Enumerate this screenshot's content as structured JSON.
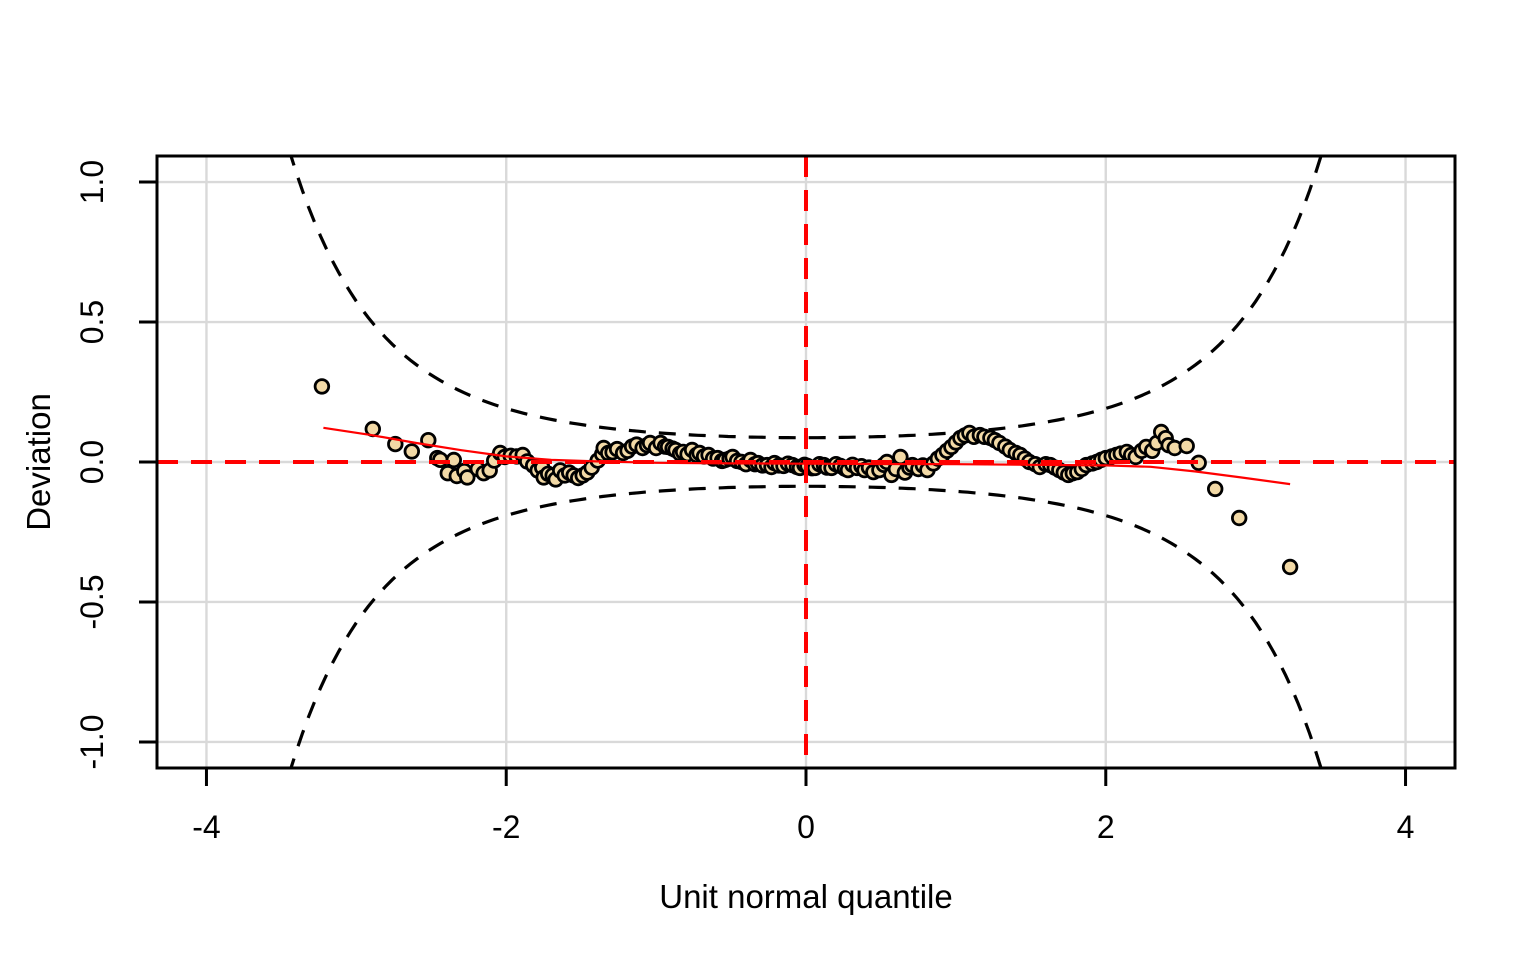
{
  "figure": {
    "background": "#ffffff"
  },
  "chart_data": {
    "type": "scatter",
    "title": "",
    "xlabel": "Unit normal quantile",
    "ylabel": "Deviation",
    "xlim": [
      -4.33,
      4.33
    ],
    "ylim": [
      -1.093,
      1.093
    ],
    "grid": true,
    "x_ticks": {
      "values": [
        -4,
        -2,
        0,
        2,
        4
      ],
      "labels": [
        "-4",
        "-2",
        "0",
        "2",
        "4"
      ]
    },
    "y_ticks": {
      "values": [
        -1.0,
        -0.5,
        0.0,
        0.5,
        1.0
      ],
      "labels": [
        "-1.0",
        "-0.5",
        "0.0",
        "0.5",
        "1.0"
      ]
    },
    "reference_lines": {
      "horizontal_y": 0,
      "vertical_x": 0
    },
    "confidence_envelope": {
      "level": 0.95,
      "z_multiplier": 1.96,
      "n": 800
    },
    "fit_curve": [
      [
        -3.22,
        0.122
      ],
      [
        -2.9,
        0.096
      ],
      [
        -2.6,
        0.068
      ],
      [
        -2.3,
        0.042
      ],
      [
        -2.0,
        0.02
      ],
      [
        -1.7,
        0.008
      ],
      [
        -1.4,
        0.002
      ],
      [
        -1.0,
        -0.003
      ],
      [
        -0.5,
        -0.005
      ],
      [
        0,
        -0.006
      ],
      [
        0.5,
        -0.007
      ],
      [
        1.0,
        -0.008
      ],
      [
        1.5,
        -0.01
      ],
      [
        2.0,
        -0.012
      ],
      [
        2.3,
        -0.017
      ],
      [
        2.6,
        -0.034
      ],
      [
        2.9,
        -0.055
      ],
      [
        3.23,
        -0.079
      ]
    ],
    "points": [
      [
        -3.23,
        0.27
      ],
      [
        -2.89,
        0.118
      ],
      [
        -2.74,
        0.064
      ],
      [
        -2.63,
        0.038
      ],
      [
        -2.52,
        0.078
      ],
      [
        -2.46,
        0.014
      ],
      [
        -2.44,
        0.008
      ],
      [
        -2.39,
        -0.04
      ],
      [
        -2.35,
        0.007
      ],
      [
        -2.33,
        -0.05
      ],
      [
        -2.28,
        -0.032
      ],
      [
        -2.26,
        -0.055
      ],
      [
        -2.19,
        -0.025
      ],
      [
        -2.15,
        -0.04
      ],
      [
        -2.11,
        -0.03
      ],
      [
        -2.08,
        0.005
      ],
      [
        -2.04,
        0.032
      ],
      [
        -2.01,
        0.018
      ],
      [
        -1.97,
        0.022
      ],
      [
        -1.93,
        0.02
      ],
      [
        -1.89,
        0.025
      ],
      [
        -1.86,
        0.002
      ],
      [
        -1.82,
        -0.012
      ],
      [
        -1.79,
        -0.03
      ],
      [
        -1.76,
        -0.02
      ],
      [
        -1.75,
        -0.055
      ],
      [
        -1.72,
        -0.042
      ],
      [
        -1.69,
        -0.048
      ],
      [
        -1.67,
        -0.062
      ],
      [
        -1.64,
        -0.03
      ],
      [
        -1.61,
        -0.048
      ],
      [
        -1.58,
        -0.038
      ],
      [
        -1.55,
        -0.048
      ],
      [
        -1.52,
        -0.057
      ],
      [
        -1.49,
        -0.048
      ],
      [
        -1.46,
        -0.038
      ],
      [
        -1.43,
        -0.02
      ],
      [
        -1.39,
        0.005
      ],
      [
        -1.36,
        0.028
      ],
      [
        -1.35,
        0.05
      ],
      [
        -1.32,
        0.032
      ],
      [
        -1.29,
        0.035
      ],
      [
        -1.26,
        0.046
      ],
      [
        -1.22,
        0.032
      ],
      [
        -1.19,
        0.04
      ],
      [
        -1.16,
        0.055
      ],
      [
        -1.13,
        0.062
      ],
      [
        -1.09,
        0.05
      ],
      [
        -1.06,
        0.06
      ],
      [
        -1.04,
        0.068
      ],
      [
        -1.0,
        0.05
      ],
      [
        -0.97,
        0.068
      ],
      [
        -0.94,
        0.055
      ],
      [
        -0.92,
        0.054
      ],
      [
        -0.89,
        0.048
      ],
      [
        -0.87,
        0.043
      ],
      [
        -0.84,
        0.03
      ],
      [
        -0.82,
        0.036
      ],
      [
        -0.79,
        0.028
      ],
      [
        -0.76,
        0.043
      ],
      [
        -0.73,
        0.025
      ],
      [
        -0.71,
        0.032
      ],
      [
        -0.68,
        0.02
      ],
      [
        -0.65,
        0.025
      ],
      [
        -0.62,
        0.012
      ],
      [
        -0.59,
        0.014
      ],
      [
        -0.56,
        0.004
      ],
      [
        -0.54,
        0.007
      ],
      [
        -0.51,
        0.012
      ],
      [
        -0.49,
        0.018
      ],
      [
        -0.46,
        0.004
      ],
      [
        -0.43,
        0.0
      ],
      [
        -0.4,
        -0.008
      ],
      [
        -0.37,
        0.007
      ],
      [
        -0.34,
        -0.008
      ],
      [
        -0.32,
        -0.004
      ],
      [
        -0.29,
        -0.012
      ],
      [
        -0.26,
        -0.011
      ],
      [
        -0.23,
        -0.018
      ],
      [
        -0.21,
        -0.004
      ],
      [
        -0.18,
        -0.012
      ],
      [
        -0.15,
        -0.014
      ],
      [
        -0.12,
        -0.006
      ],
      [
        -0.09,
        -0.011
      ],
      [
        -0.06,
        -0.018
      ],
      [
        -0.04,
        -0.021
      ],
      [
        -0.01,
        -0.01
      ],
      [
        0.01,
        -0.014
      ],
      [
        0.04,
        -0.022
      ],
      [
        0.06,
        -0.021
      ],
      [
        0.09,
        -0.008
      ],
      [
        0.12,
        -0.011
      ],
      [
        0.14,
        -0.02
      ],
      [
        0.17,
        -0.021
      ],
      [
        0.2,
        -0.008
      ],
      [
        0.23,
        -0.014
      ],
      [
        0.26,
        -0.024
      ],
      [
        0.28,
        -0.029
      ],
      [
        0.31,
        -0.01
      ],
      [
        0.34,
        -0.021
      ],
      [
        0.37,
        -0.015
      ],
      [
        0.39,
        -0.029
      ],
      [
        0.42,
        -0.02
      ],
      [
        0.45,
        -0.036
      ],
      [
        0.49,
        -0.029
      ],
      [
        0.52,
        -0.01
      ],
      [
        0.54,
        0.0
      ],
      [
        0.57,
        -0.046
      ],
      [
        0.6,
        -0.025
      ],
      [
        0.63,
        0.018
      ],
      [
        0.66,
        -0.038
      ],
      [
        0.69,
        -0.02
      ],
      [
        0.71,
        -0.011
      ],
      [
        0.75,
        -0.025
      ],
      [
        0.78,
        -0.012
      ],
      [
        0.81,
        -0.029
      ],
      [
        0.85,
        -0.005
      ],
      [
        0.88,
        0.012
      ],
      [
        0.91,
        0.025
      ],
      [
        0.94,
        0.04
      ],
      [
        0.97,
        0.054
      ],
      [
        1.0,
        0.07
      ],
      [
        1.03,
        0.086
      ],
      [
        1.06,
        0.095
      ],
      [
        1.09,
        0.104
      ],
      [
        1.12,
        0.09
      ],
      [
        1.16,
        0.096
      ],
      [
        1.19,
        0.09
      ],
      [
        1.23,
        0.086
      ],
      [
        1.26,
        0.078
      ],
      [
        1.29,
        0.068
      ],
      [
        1.33,
        0.055
      ],
      [
        1.36,
        0.043
      ],
      [
        1.4,
        0.032
      ],
      [
        1.43,
        0.025
      ],
      [
        1.46,
        0.012
      ],
      [
        1.49,
        0.0
      ],
      [
        1.53,
        -0.008
      ],
      [
        1.56,
        -0.018
      ],
      [
        1.6,
        -0.008
      ],
      [
        1.63,
        -0.011
      ],
      [
        1.66,
        -0.02
      ],
      [
        1.69,
        -0.029
      ],
      [
        1.72,
        -0.038
      ],
      [
        1.75,
        -0.046
      ],
      [
        1.78,
        -0.04
      ],
      [
        1.81,
        -0.036
      ],
      [
        1.84,
        -0.025
      ],
      [
        1.87,
        -0.011
      ],
      [
        1.91,
        -0.005
      ],
      [
        1.94,
        0.0
      ],
      [
        1.97,
        0.008
      ],
      [
        2.0,
        0.014
      ],
      [
        2.04,
        0.02
      ],
      [
        2.07,
        0.025
      ],
      [
        2.1,
        0.03
      ],
      [
        2.14,
        0.036
      ],
      [
        2.17,
        0.025
      ],
      [
        2.2,
        0.018
      ],
      [
        2.24,
        0.04
      ],
      [
        2.27,
        0.054
      ],
      [
        2.31,
        0.04
      ],
      [
        2.34,
        0.068
      ],
      [
        2.37,
        0.107
      ],
      [
        2.4,
        0.085
      ],
      [
        2.42,
        0.06
      ],
      [
        2.46,
        0.05
      ],
      [
        2.54,
        0.057
      ],
      [
        2.62,
        -0.003
      ],
      [
        2.73,
        -0.096
      ],
      [
        2.89,
        -0.2
      ],
      [
        3.23,
        -0.375
      ]
    ]
  },
  "style": {
    "point_fill": "#F2D9A6",
    "point_stroke": "#000000",
    "fit_line_color": "#FF0000",
    "reference_line_color": "#FF0000",
    "envelope_color": "#000000",
    "grid_color": "#D9D9D9",
    "axis_color": "#000000",
    "text_color": "#000000"
  }
}
